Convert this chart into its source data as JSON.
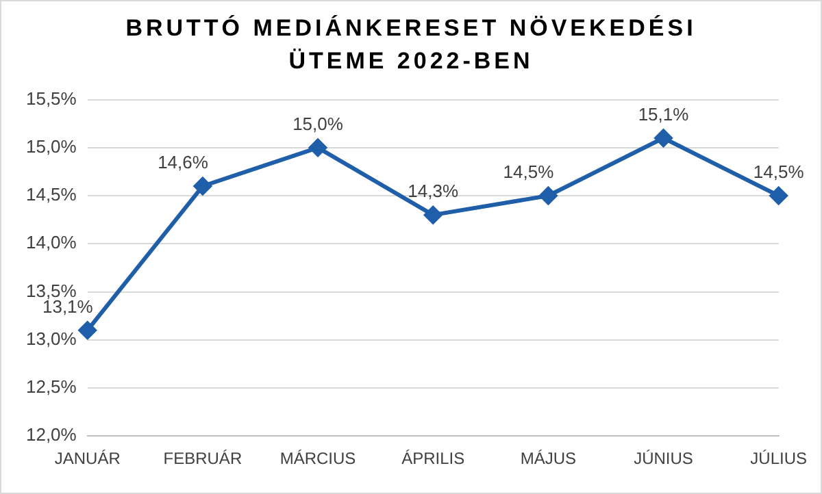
{
  "chart_data": {
    "type": "line",
    "title": "BRUTTÓ MEDIÁNKERESET NÖVEKEDÉSI ÜTEME 2022-BEN",
    "categories": [
      "JANUÁR",
      "FEBRUÁR",
      "MÁRCIUS",
      "ÁPRILIS",
      "MÁJUS",
      "JÚNIUS",
      "JÚLIUS"
    ],
    "series": [
      {
        "color": "#1f5ea8",
        "values": [
          13.1,
          14.6,
          15.0,
          14.3,
          14.5,
          15.1,
          14.5
        ],
        "value_labels": [
          "13,1%",
          "14,6%",
          "15,0%",
          "14,3%",
          "14,5%",
          "15,1%",
          "14,5%"
        ]
      }
    ],
    "ylim": [
      12,
      15.5
    ],
    "yticks": [
      {
        "value": 12,
        "label": "12,0%"
      },
      {
        "value": 12.5,
        "label": "12,5%"
      },
      {
        "value": 13,
        "label": "13,0%"
      },
      {
        "value": 13.5,
        "label": "13,5%"
      },
      {
        "value": 14,
        "label": "14,0%"
      },
      {
        "value": 14.5,
        "label": "14,5%"
      },
      {
        "value": 15,
        "label": "15,0%"
      },
      {
        "value": 15.5,
        "label": "15,5%"
      }
    ],
    "grid": "y",
    "marker": "diamond",
    "line_style": "solid",
    "legend": false
  }
}
